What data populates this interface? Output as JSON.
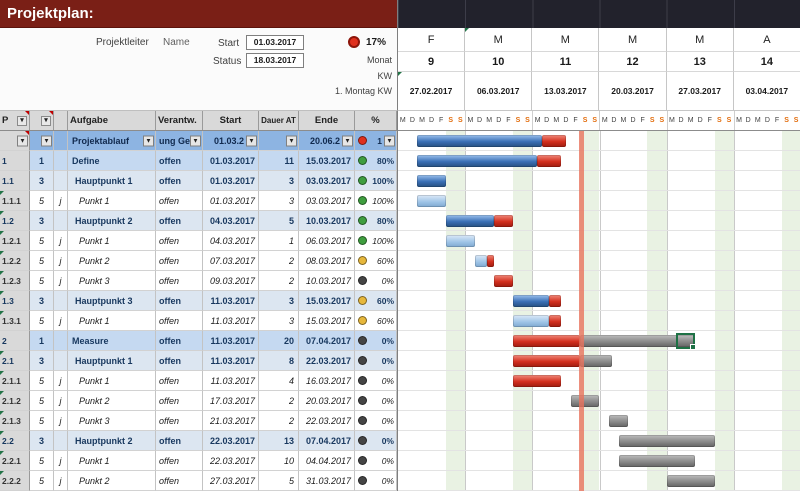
{
  "title": "Projektplan:",
  "info": {
    "projektleiter_label": "Projektleiter",
    "projektleiter_value": "Name",
    "start_label": "Start",
    "start_value": "01.03.2017",
    "status_label": "Status",
    "status_value": "18.03.2017",
    "kpi_percent": "17%",
    "monat_label": "Monat",
    "kw_label": "KW",
    "montag_label": "1. Montag KW"
  },
  "calendar": {
    "months": [
      "F",
      "M",
      "M",
      "M",
      "M",
      "A"
    ],
    "weeks": [
      "9",
      "10",
      "11",
      "12",
      "13",
      "14"
    ],
    "week_dates": [
      "27.02.2017",
      "06.03.2017",
      "13.03.2017",
      "20.03.2017",
      "27.03.2017",
      "03.04.2017"
    ],
    "day_letters": [
      "M",
      "D",
      "M",
      "D",
      "F",
      "S",
      "S"
    ]
  },
  "table": {
    "headers": [
      "P",
      "",
      "",
      "Aufgabe",
      "Verantw.",
      "Start",
      "Dauer AT",
      "Ende",
      "%"
    ],
    "rows": [
      {
        "id": "",
        "lvl": "",
        "j": "",
        "task": "Projektablauf",
        "resp": "ung Ge",
        "start": "01.03.2",
        "dauer": "",
        "ende": "20.06.2",
        "pct": "1",
        "status": "red",
        "style": "sel",
        "dd": true,
        "marker": "red",
        "bars": [
          [
            2,
            13,
            "blue"
          ],
          [
            15,
            2.5,
            "red"
          ]
        ]
      },
      {
        "id": "1",
        "lvl": "1",
        "j": "",
        "task": "Define",
        "resp": "offen",
        "start": "01.03.2017",
        "dauer": "11",
        "ende": "15.03.2017",
        "pct": "80%",
        "status": "green",
        "style": "l1",
        "dd": false,
        "marker": null,
        "bars": [
          [
            2,
            12.5,
            "blue"
          ],
          [
            14.5,
            2.5,
            "red"
          ]
        ]
      },
      {
        "id": "1.1",
        "lvl": "3",
        "j": "",
        "task": "Hauptpunkt 1",
        "resp": "offen",
        "start": "01.03.2017",
        "dauer": "3",
        "ende": "03.03.2017",
        "pct": "100%",
        "status": "green",
        "style": "l3",
        "dd": false,
        "marker": null,
        "bars": [
          [
            2,
            3,
            "blue"
          ]
        ]
      },
      {
        "id": "1.1.1",
        "lvl": "5",
        "j": "j",
        "task": "Punkt 1",
        "resp": "offen",
        "start": "01.03.2017",
        "dauer": "3",
        "ende": "03.03.2017",
        "pct": "100%",
        "status": "green",
        "style": "l5",
        "dd": false,
        "marker": "green",
        "bars": [
          [
            2,
            3,
            "lightblue"
          ]
        ]
      },
      {
        "id": "1.2",
        "lvl": "3",
        "j": "",
        "task": "Hauptpunkt 2",
        "resp": "offen",
        "start": "04.03.2017",
        "dauer": "5",
        "ende": "10.03.2017",
        "pct": "80%",
        "status": "green",
        "style": "l3",
        "dd": false,
        "marker": "green",
        "bars": [
          [
            5,
            5,
            "blue"
          ],
          [
            10,
            2,
            "red"
          ]
        ]
      },
      {
        "id": "1.2.1",
        "lvl": "5",
        "j": "j",
        "task": "Punkt 1",
        "resp": "offen",
        "start": "04.03.2017",
        "dauer": "1",
        "ende": "06.03.2017",
        "pct": "100%",
        "status": "green",
        "style": "l5",
        "dd": false,
        "marker": "green",
        "bars": [
          [
            5,
            3,
            "lightblue"
          ]
        ]
      },
      {
        "id": "1.2.2",
        "lvl": "5",
        "j": "j",
        "task": "Punkt 2",
        "resp": "offen",
        "start": "07.03.2017",
        "dauer": "2",
        "ende": "08.03.2017",
        "pct": "60%",
        "status": "yellow",
        "style": "l5",
        "dd": false,
        "marker": "green",
        "bars": [
          [
            8,
            1.3,
            "lightblue"
          ],
          [
            9.3,
            0.7,
            "red"
          ]
        ]
      },
      {
        "id": "1.2.3",
        "lvl": "5",
        "j": "j",
        "task": "Punkt 3",
        "resp": "offen",
        "start": "09.03.2017",
        "dauer": "2",
        "ende": "10.03.2017",
        "pct": "0%",
        "status": "dark",
        "style": "l5",
        "dd": false,
        "marker": "green",
        "bars": [
          [
            10,
            2,
            "red"
          ]
        ]
      },
      {
        "id": "1.3",
        "lvl": "3",
        "j": "",
        "task": "Hauptpunkt 3",
        "resp": "offen",
        "start": "11.03.2017",
        "dauer": "3",
        "ende": "15.03.2017",
        "pct": "60%",
        "status": "yellow",
        "style": "l3",
        "dd": false,
        "marker": "green",
        "bars": [
          [
            12,
            3.7,
            "blue"
          ],
          [
            15.7,
            1.3,
            "red"
          ]
        ]
      },
      {
        "id": "1.3.1",
        "lvl": "5",
        "j": "j",
        "task": "Punkt 1",
        "resp": "offen",
        "start": "11.03.2017",
        "dauer": "3",
        "ende": "15.03.2017",
        "pct": "60%",
        "status": "yellow",
        "style": "l5",
        "dd": false,
        "marker": "green",
        "bars": [
          [
            12,
            3.7,
            "lightblue"
          ],
          [
            15.7,
            1.3,
            "red"
          ]
        ]
      },
      {
        "id": "2",
        "lvl": "1",
        "j": "",
        "task": "Measure",
        "resp": "offen",
        "start": "11.03.2017",
        "dauer": "20",
        "ende": "07.04.2017",
        "pct": "0%",
        "status": "dark",
        "style": "l1",
        "dd": false,
        "marker": null,
        "bars": [
          [
            12,
            7,
            "red"
          ],
          [
            19,
            12,
            "gray"
          ]
        ]
      },
      {
        "id": "2.1",
        "lvl": "3",
        "j": "",
        "task": "Hauptpunkt 1",
        "resp": "offen",
        "start": "11.03.2017",
        "dauer": "8",
        "ende": "22.03.2017",
        "pct": "0%",
        "status": "dark",
        "style": "l3",
        "dd": false,
        "marker": "green",
        "bars": [
          [
            12,
            7,
            "red"
          ],
          [
            19,
            3.3,
            "gray"
          ]
        ]
      },
      {
        "id": "2.1.1",
        "lvl": "5",
        "j": "j",
        "task": "Punkt 1",
        "resp": "offen",
        "start": "11.03.2017",
        "dauer": "4",
        "ende": "16.03.2017",
        "pct": "0%",
        "status": "dark",
        "style": "l5",
        "dd": false,
        "marker": "green",
        "bars": [
          [
            12,
            5,
            "red"
          ]
        ]
      },
      {
        "id": "2.1.2",
        "lvl": "5",
        "j": "j",
        "task": "Punkt 2",
        "resp": "offen",
        "start": "17.03.2017",
        "dauer": "2",
        "ende": "20.03.2017",
        "pct": "0%",
        "status": "dark",
        "style": "l5",
        "dd": false,
        "marker": "green",
        "bars": [
          [
            18,
            3,
            "gray"
          ]
        ]
      },
      {
        "id": "2.1.3",
        "lvl": "5",
        "j": "j",
        "task": "Punkt 3",
        "resp": "offen",
        "start": "21.03.2017",
        "dauer": "2",
        "ende": "22.03.2017",
        "pct": "0%",
        "status": "dark",
        "style": "l5",
        "dd": false,
        "marker": "green",
        "bars": [
          [
            22,
            2,
            "gray"
          ]
        ]
      },
      {
        "id": "2.2",
        "lvl": "3",
        "j": "",
        "task": "Hauptpunkt 2",
        "resp": "offen",
        "start": "22.03.2017",
        "dauer": "13",
        "ende": "07.04.2017",
        "pct": "0%",
        "status": "dark",
        "style": "l3",
        "dd": false,
        "marker": "green",
        "bars": [
          [
            23,
            10,
            "gray"
          ]
        ]
      },
      {
        "id": "2.2.1",
        "lvl": "5",
        "j": "j",
        "task": "Punkt 1",
        "resp": "offen",
        "start": "22.03.2017",
        "dauer": "10",
        "ende": "04.04.2017",
        "pct": "0%",
        "status": "dark",
        "style": "l5",
        "dd": false,
        "marker": "green",
        "bars": [
          [
            23,
            8,
            "gray"
          ]
        ]
      },
      {
        "id": "2.2.2",
        "lvl": "5",
        "j": "j",
        "task": "Punkt 2",
        "resp": "offen",
        "start": "27.03.2017",
        "dauer": "5",
        "ende": "31.03.2017",
        "pct": "0%",
        "status": "dark",
        "style": "l5",
        "dd": false,
        "marker": "green",
        "bars": [
          [
            28,
            5,
            "gray"
          ]
        ]
      }
    ]
  },
  "chart": {
    "weeks": 6,
    "days_per_week": 7,
    "today_line_day": 19,
    "cursor": {
      "row": 10,
      "day": 29,
      "width_days": 2
    }
  },
  "colors": {
    "header_bar": "#7a1f16",
    "today_line": "#e8735c",
    "weekend_band": "#e9f2e3",
    "selected_row": "#8db4e2",
    "level1_row": "#c5d9f1",
    "level3_row": "#dce6f1",
    "bar_blue": "#3a6fb5",
    "bar_lightblue": "#9dc3e6",
    "bar_red": "#d32f1e",
    "bar_gray": "#8a8a8a",
    "status_green": "#3f9e3f",
    "status_yellow": "#e6b73c",
    "status_dark": "#454545",
    "status_red": "#e0301e",
    "weekend_letter": "#e26b0a"
  }
}
